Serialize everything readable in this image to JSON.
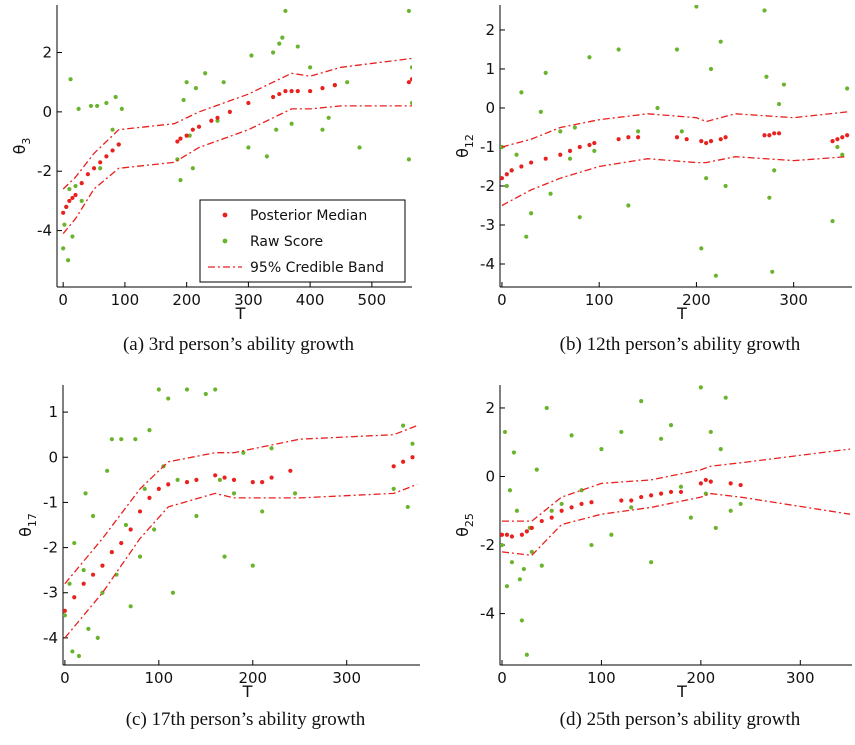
{
  "chart_data": [
    {
      "type": "scatter",
      "caption": "(a) 3rd person’s ability growth",
      "xlabel": "T",
      "ylabel": "θ",
      "ylabel_subscript": "3",
      "xlim": [
        -10,
        565
      ],
      "ylim": [
        -5.9,
        3.6
      ],
      "xticks": [
        0,
        100,
        200,
        300,
        400,
        500
      ],
      "yticks": [
        -4,
        -2,
        0,
        2
      ],
      "legend": "lower right",
      "series": [
        {
          "name": "Posterior Median",
          "color": "#e8201e",
          "x": [
            0,
            5,
            10,
            15,
            20,
            30,
            40,
            50,
            60,
            70,
            80,
            90,
            185,
            190,
            200,
            210,
            220,
            240,
            250,
            270,
            300,
            340,
            350,
            360,
            370,
            380,
            400,
            420,
            440,
            560,
            565
          ],
          "values": [
            -3.4,
            -3.2,
            -3.0,
            -2.9,
            -2.8,
            -2.4,
            -2.1,
            -1.9,
            -1.7,
            -1.5,
            -1.3,
            -1.1,
            -1.0,
            -0.9,
            -0.8,
            -0.6,
            -0.5,
            -0.3,
            -0.2,
            0.0,
            0.3,
            0.5,
            0.6,
            0.7,
            0.7,
            0.7,
            0.7,
            0.8,
            0.9,
            1.0,
            1.1
          ]
        },
        {
          "name": "Raw Score",
          "color": "#6ab42d",
          "x": [
            0,
            2,
            5,
            8,
            10,
            12,
            15,
            20,
            25,
            30,
            45,
            55,
            60,
            70,
            80,
            85,
            90,
            95,
            185,
            190,
            195,
            200,
            205,
            210,
            215,
            230,
            250,
            260,
            300,
            305,
            330,
            340,
            345,
            350,
            355,
            360,
            370,
            380,
            400,
            420,
            430,
            440,
            460,
            480,
            560,
            565,
            560,
            565
          ],
          "values": [
            -4.6,
            -3.8,
            -3.2,
            -5.0,
            -2.6,
            1.1,
            -4.2,
            -2.5,
            0.1,
            -3.0,
            0.2,
            0.2,
            -1.9,
            0.3,
            -0.6,
            0.5,
            -1.1,
            0.1,
            -1.6,
            -2.3,
            0.4,
            1.0,
            -0.8,
            -1.9,
            0.8,
            1.3,
            -0.3,
            1.0,
            -1.2,
            1.9,
            -1.5,
            2.0,
            -0.6,
            2.3,
            2.5,
            3.4,
            -0.4,
            2.2,
            1.5,
            -0.6,
            -0.2,
            0.9,
            1.0,
            -1.2,
            3.4,
            0.3,
            -1.6,
            1.5
          ]
        },
        {
          "name": "95% Credible Band",
          "color": "#e8201e",
          "linestyle": "dashdot",
          "x": [
            0,
            20,
            50,
            90,
            180,
            220,
            260,
            300,
            340,
            370,
            400,
            450,
            565
          ],
          "upper": [
            -2.6,
            -2.2,
            -1.4,
            -0.6,
            -0.4,
            0.0,
            0.3,
            0.6,
            1.0,
            1.3,
            1.2,
            1.5,
            1.8
          ],
          "lower": [
            -4.1,
            -3.6,
            -2.6,
            -1.9,
            -1.7,
            -1.2,
            -0.9,
            -0.6,
            -0.2,
            0.1,
            0.1,
            0.2,
            0.2
          ]
        }
      ]
    },
    {
      "type": "scatter",
      "caption": "(b) 12th person’s ability growth",
      "xlabel": "T",
      "ylabel": "θ",
      "ylabel_subscript": "12",
      "xlim": [
        -2,
        360
      ],
      "ylim": [
        -4.59,
        2.64
      ],
      "xticks": [
        0,
        100,
        200,
        300
      ],
      "yticks": [
        -4,
        -3,
        -2,
        -1,
        0,
        1,
        2
      ],
      "series": [
        {
          "color": "#e8201e",
          "x": [
            0,
            5,
            10,
            20,
            30,
            45,
            60,
            70,
            80,
            90,
            95,
            120,
            130,
            140,
            180,
            190,
            205,
            210,
            215,
            225,
            230,
            270,
            275,
            280,
            285,
            340,
            345,
            350,
            355
          ],
          "values": [
            -1.8,
            -1.7,
            -1.6,
            -1.5,
            -1.4,
            -1.3,
            -1.2,
            -1.1,
            -1.0,
            -0.95,
            -0.9,
            -0.8,
            -0.75,
            -0.75,
            -0.75,
            -0.8,
            -0.85,
            -0.9,
            -0.85,
            -0.8,
            -0.75,
            -0.7,
            -0.7,
            -0.65,
            -0.65,
            -0.85,
            -0.8,
            -0.75,
            -0.7
          ]
        },
        {
          "color": "#6ab42d",
          "x": [
            0,
            5,
            10,
            15,
            20,
            25,
            30,
            40,
            45,
            50,
            60,
            70,
            75,
            80,
            90,
            95,
            120,
            130,
            140,
            160,
            180,
            185,
            200,
            205,
            210,
            215,
            220,
            225,
            230,
            270,
            272,
            275,
            278,
            280,
            285,
            290,
            340,
            345,
            350,
            355
          ],
          "values": [
            -1.0,
            -2.0,
            -1.6,
            -1.2,
            0.4,
            -3.3,
            -2.7,
            -0.1,
            0.9,
            -2.2,
            -0.6,
            -1.3,
            -0.5,
            -2.8,
            1.3,
            -1.1,
            1.5,
            -2.5,
            -0.6,
            0.0,
            1.5,
            -0.6,
            2.6,
            -3.6,
            -1.8,
            1.0,
            -4.3,
            1.7,
            -2.0,
            2.5,
            0.8,
            -2.3,
            -4.2,
            -1.6,
            0.1,
            0.6,
            -2.9,
            -1.0,
            -1.2,
            0.5
          ]
        },
        {
          "color": "#e8201e",
          "linestyle": "dashdot",
          "x": [
            0,
            30,
            60,
            100,
            150,
            200,
            210,
            240,
            300,
            355
          ],
          "upper": [
            -1.0,
            -0.8,
            -0.5,
            -0.3,
            -0.15,
            -0.25,
            -0.35,
            -0.15,
            -0.25,
            -0.1
          ],
          "lower": [
            -2.5,
            -2.1,
            -1.8,
            -1.5,
            -1.3,
            -1.4,
            -1.4,
            -1.25,
            -1.35,
            -1.25
          ]
        }
      ]
    },
    {
      "type": "scatter",
      "caption": "(c) 17th person’s ability growth",
      "xlabel": "T",
      "ylabel": "θ",
      "ylabel_subscript": "17",
      "xlim": [
        -2,
        378
      ],
      "ylim": [
        -4.6,
        1.6
      ],
      "xticks": [
        0,
        100,
        200,
        300
      ],
      "yticks": [
        -4,
        -3,
        -2,
        -1,
        0,
        1
      ],
      "series": [
        {
          "color": "#e8201e",
          "x": [
            0,
            10,
            20,
            30,
            40,
            50,
            60,
            70,
            80,
            90,
            100,
            110,
            130,
            140,
            160,
            170,
            180,
            200,
            210,
            220,
            240,
            350,
            360,
            370
          ],
          "values": [
            -3.4,
            -3.1,
            -2.8,
            -2.6,
            -2.4,
            -2.1,
            -1.9,
            -1.6,
            -1.2,
            -0.9,
            -0.7,
            -0.6,
            -0.55,
            -0.5,
            -0.4,
            -0.45,
            -0.5,
            -0.55,
            -0.55,
            -0.45,
            -0.3,
            -0.2,
            -0.1,
            0.0
          ]
        },
        {
          "color": "#6ab42d",
          "x": [
            0,
            5,
            8,
            10,
            15,
            20,
            22,
            25,
            30,
            35,
            40,
            45,
            50,
            55,
            60,
            65,
            70,
            75,
            80,
            85,
            90,
            95,
            100,
            105,
            110,
            115,
            120,
            130,
            140,
            150,
            160,
            165,
            170,
            180,
            190,
            200,
            210,
            220,
            245,
            350,
            360,
            365,
            370
          ],
          "values": [
            -3.5,
            -2.8,
            -4.3,
            -1.9,
            -4.4,
            -2.5,
            -0.8,
            -3.8,
            -1.3,
            -4.0,
            -3.0,
            -0.3,
            0.4,
            -2.6,
            0.4,
            -1.5,
            -3.3,
            0.4,
            -2.2,
            -0.7,
            0.6,
            -1.6,
            1.5,
            -0.2,
            1.3,
            -3.0,
            -0.5,
            1.5,
            -1.3,
            1.4,
            1.5,
            -0.5,
            -2.2,
            -0.8,
            0.1,
            -2.4,
            -1.2,
            0.2,
            -0.8,
            -0.7,
            0.7,
            -1.1,
            0.3
          ]
        },
        {
          "color": "#e8201e",
          "linestyle": "dashdot",
          "x": [
            0,
            40,
            80,
            110,
            160,
            180,
            250,
            350,
            375
          ],
          "upper": [
            -2.8,
            -1.8,
            -0.7,
            -0.1,
            0.1,
            0.1,
            0.4,
            0.5,
            0.7
          ],
          "lower": [
            -4.0,
            -3.0,
            -1.8,
            -1.1,
            -0.8,
            -0.9,
            -0.9,
            -0.8,
            -0.6
          ]
        }
      ]
    },
    {
      "type": "scatter",
      "caption": "(d) 25th person’s ability growth",
      "xlabel": "T",
      "ylabel": "θ",
      "ylabel_subscript": "25",
      "xlim": [
        -2,
        352
      ],
      "ylim": [
        -5.5,
        2.67
      ],
      "xticks": [
        0,
        100,
        200,
        300
      ],
      "yticks": [
        -4,
        -2,
        0,
        2
      ],
      "series": [
        {
          "color": "#e8201e",
          "x": [
            0,
            5,
            10,
            20,
            25,
            30,
            40,
            50,
            60,
            70,
            80,
            90,
            120,
            130,
            140,
            150,
            160,
            170,
            180,
            200,
            205,
            210,
            230,
            240
          ],
          "values": [
            -1.7,
            -1.7,
            -1.75,
            -1.7,
            -1.6,
            -1.5,
            -1.3,
            -1.2,
            -1.0,
            -0.9,
            -0.8,
            -0.75,
            -0.7,
            -0.7,
            -0.6,
            -0.55,
            -0.5,
            -0.45,
            -0.45,
            -0.2,
            -0.1,
            -0.15,
            -0.2,
            -0.25
          ]
        },
        {
          "color": "#6ab42d",
          "x": [
            0,
            3,
            5,
            8,
            10,
            12,
            15,
            18,
            20,
            22,
            25,
            28,
            30,
            35,
            40,
            45,
            50,
            60,
            70,
            80,
            90,
            100,
            110,
            120,
            130,
            140,
            150,
            160,
            170,
            180,
            190,
            200,
            205,
            210,
            215,
            220,
            225,
            230,
            240
          ],
          "values": [
            -2.0,
            1.3,
            -3.2,
            -0.4,
            -2.5,
            0.7,
            -1.0,
            -3.0,
            -4.2,
            -2.7,
            -5.2,
            -1.5,
            -2.2,
            0.2,
            -2.6,
            2.0,
            -1.0,
            -0.8,
            1.2,
            -0.4,
            -2.0,
            0.8,
            -1.7,
            1.3,
            -0.9,
            2.2,
            -2.5,
            1.1,
            1.5,
            -0.3,
            -1.2,
            2.6,
            -0.5,
            1.3,
            -1.5,
            0.8,
            2.3,
            -1.0,
            -0.8
          ]
        },
        {
          "color": "#e8201e",
          "linestyle": "dashdot",
          "x": [
            0,
            30,
            60,
            100,
            150,
            200,
            210,
            240,
            350
          ],
          "upper": [
            -1.3,
            -1.3,
            -0.6,
            -0.2,
            -0.1,
            0.2,
            0.3,
            0.4,
            0.8
          ],
          "lower": [
            -2.2,
            -2.3,
            -1.4,
            -1.1,
            -0.9,
            -0.6,
            -0.5,
            -0.6,
            -1.1
          ]
        }
      ]
    }
  ]
}
